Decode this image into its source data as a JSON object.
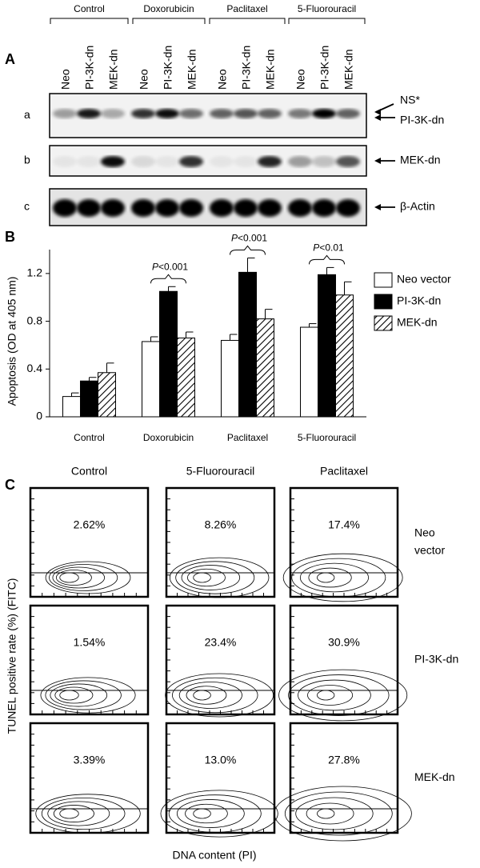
{
  "panel_a": {
    "label": "A",
    "groups": [
      "Control",
      "Doxorubicin",
      "Paclitaxel",
      "5-Fluorouracil"
    ],
    "lanes": [
      "Neo",
      "PI-3K-dn",
      "MEK-dn",
      "Neo",
      "PI-3K-dn",
      "MEK-dn",
      "Neo",
      "PI-3K-dn",
      "MEK-dn",
      "Neo",
      "PI-3K-dn",
      "MEK-dn"
    ],
    "blots": [
      {
        "row": "a",
        "markers": [
          "NS*",
          "PI-3K-dn"
        ]
      },
      {
        "row": "b",
        "markers": [
          "MEK-dn"
        ]
      },
      {
        "row": "c",
        "markers": [
          "β-Actin"
        ]
      }
    ]
  },
  "chart_data": {
    "type": "bar",
    "panel_label": "B",
    "y_label": "Apoptosis (OD at 405 nm)",
    "categories": [
      "Control",
      "Doxorubicin",
      "Paclitaxel",
      "5-Fluorouracil"
    ],
    "series": [
      {
        "name": "Neo vector",
        "color": "#ffffff",
        "fill": "solid",
        "values": [
          0.17,
          0.63,
          0.64,
          0.75
        ],
        "errors": [
          0.03,
          0.04,
          0.05,
          0.03
        ]
      },
      {
        "name": "PI-3K-dn",
        "color": "#000000",
        "fill": "solid",
        "values": [
          0.3,
          1.05,
          1.21,
          1.19
        ],
        "errors": [
          0.03,
          0.04,
          0.12,
          0.06
        ]
      },
      {
        "name": "MEK-dn",
        "color": "#000000",
        "fill": "hatch",
        "values": [
          0.37,
          0.66,
          0.82,
          1.02
        ],
        "errors": [
          0.08,
          0.05,
          0.08,
          0.11
        ]
      }
    ],
    "ylim": [
      0,
      1.4
    ],
    "yticks": [
      0,
      0.4,
      0.8,
      1.2
    ],
    "annotations": [
      {
        "category": 1,
        "symbol": "P",
        "text": "<0.001"
      },
      {
        "category": 2,
        "symbol": "P",
        "text": "<0.001"
      },
      {
        "category": 3,
        "symbol": "P",
        "text": "<0.01"
      }
    ]
  },
  "panel_c": {
    "label": "C",
    "columns": [
      "Control",
      "5-Fluorouracil",
      "Paclitaxel"
    ],
    "rows": [
      {
        "lines": [
          "Neo",
          "vector"
        ],
        "percentages": [
          "2.62%",
          "8.26%",
          "17.4%"
        ]
      },
      {
        "lines": [
          "PI-3K-dn"
        ],
        "percentages": [
          "1.54%",
          "23.4%",
          "30.9%"
        ]
      },
      {
        "lines": [
          "MEK-dn"
        ],
        "percentages": [
          "3.39%",
          "13.0%",
          "27.8%"
        ]
      }
    ],
    "y_label": "TUNEL positive rate (%) (FITC)",
    "x_label": "DNA content (PI)"
  }
}
